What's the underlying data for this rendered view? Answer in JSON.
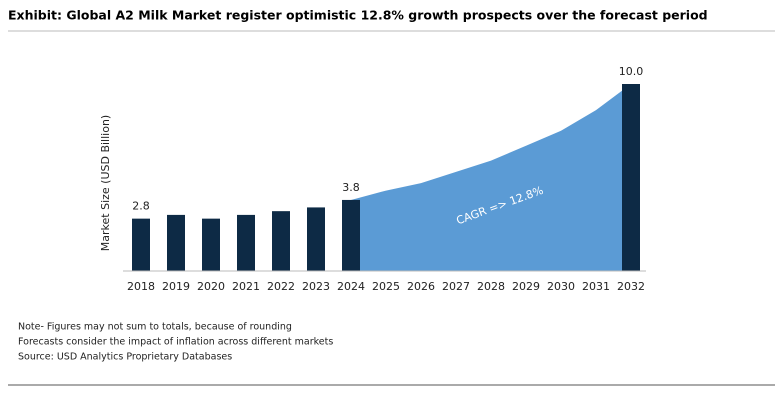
{
  "title": "Exhibit: Global A2 Milk Market register optimistic 12.8% growth prospects over the forecast period",
  "chart_data": {
    "type": "bar",
    "y_label": "Market Size (USD Billion)",
    "categories": [
      "2018",
      "2019",
      "2020",
      "2021",
      "2022",
      "2023",
      "2024",
      "2025",
      "2026",
      "2027",
      "2028",
      "2029",
      "2030",
      "2031",
      "2032"
    ],
    "series": [
      {
        "name": "Market Size",
        "type": "bar",
        "color": "#0d2a45",
        "values": [
          2.8,
          3.0,
          2.8,
          3.0,
          3.2,
          3.4,
          3.8,
          null,
          null,
          null,
          null,
          null,
          null,
          null,
          10.0
        ],
        "value_labels": [
          "2.8",
          null,
          null,
          null,
          null,
          null,
          "3.8",
          null,
          null,
          null,
          null,
          null,
          null,
          null,
          "10.0"
        ]
      },
      {
        "name": "Forecast",
        "type": "area",
        "color": "#5b9bd5",
        "values": [
          null,
          null,
          null,
          null,
          null,
          null,
          3.8,
          4.3,
          4.7,
          5.3,
          5.9,
          6.7,
          7.5,
          8.6,
          10.0
        ]
      }
    ],
    "ylim": [
      0,
      10
    ],
    "annotation": "CAGR => 12.8%"
  },
  "notes": [
    "Note- Figures may not sum to totals, because of rounding",
    "Forecasts consider the impact of inflation across different markets",
    "Source: USD Analytics Proprietary Databases"
  ]
}
